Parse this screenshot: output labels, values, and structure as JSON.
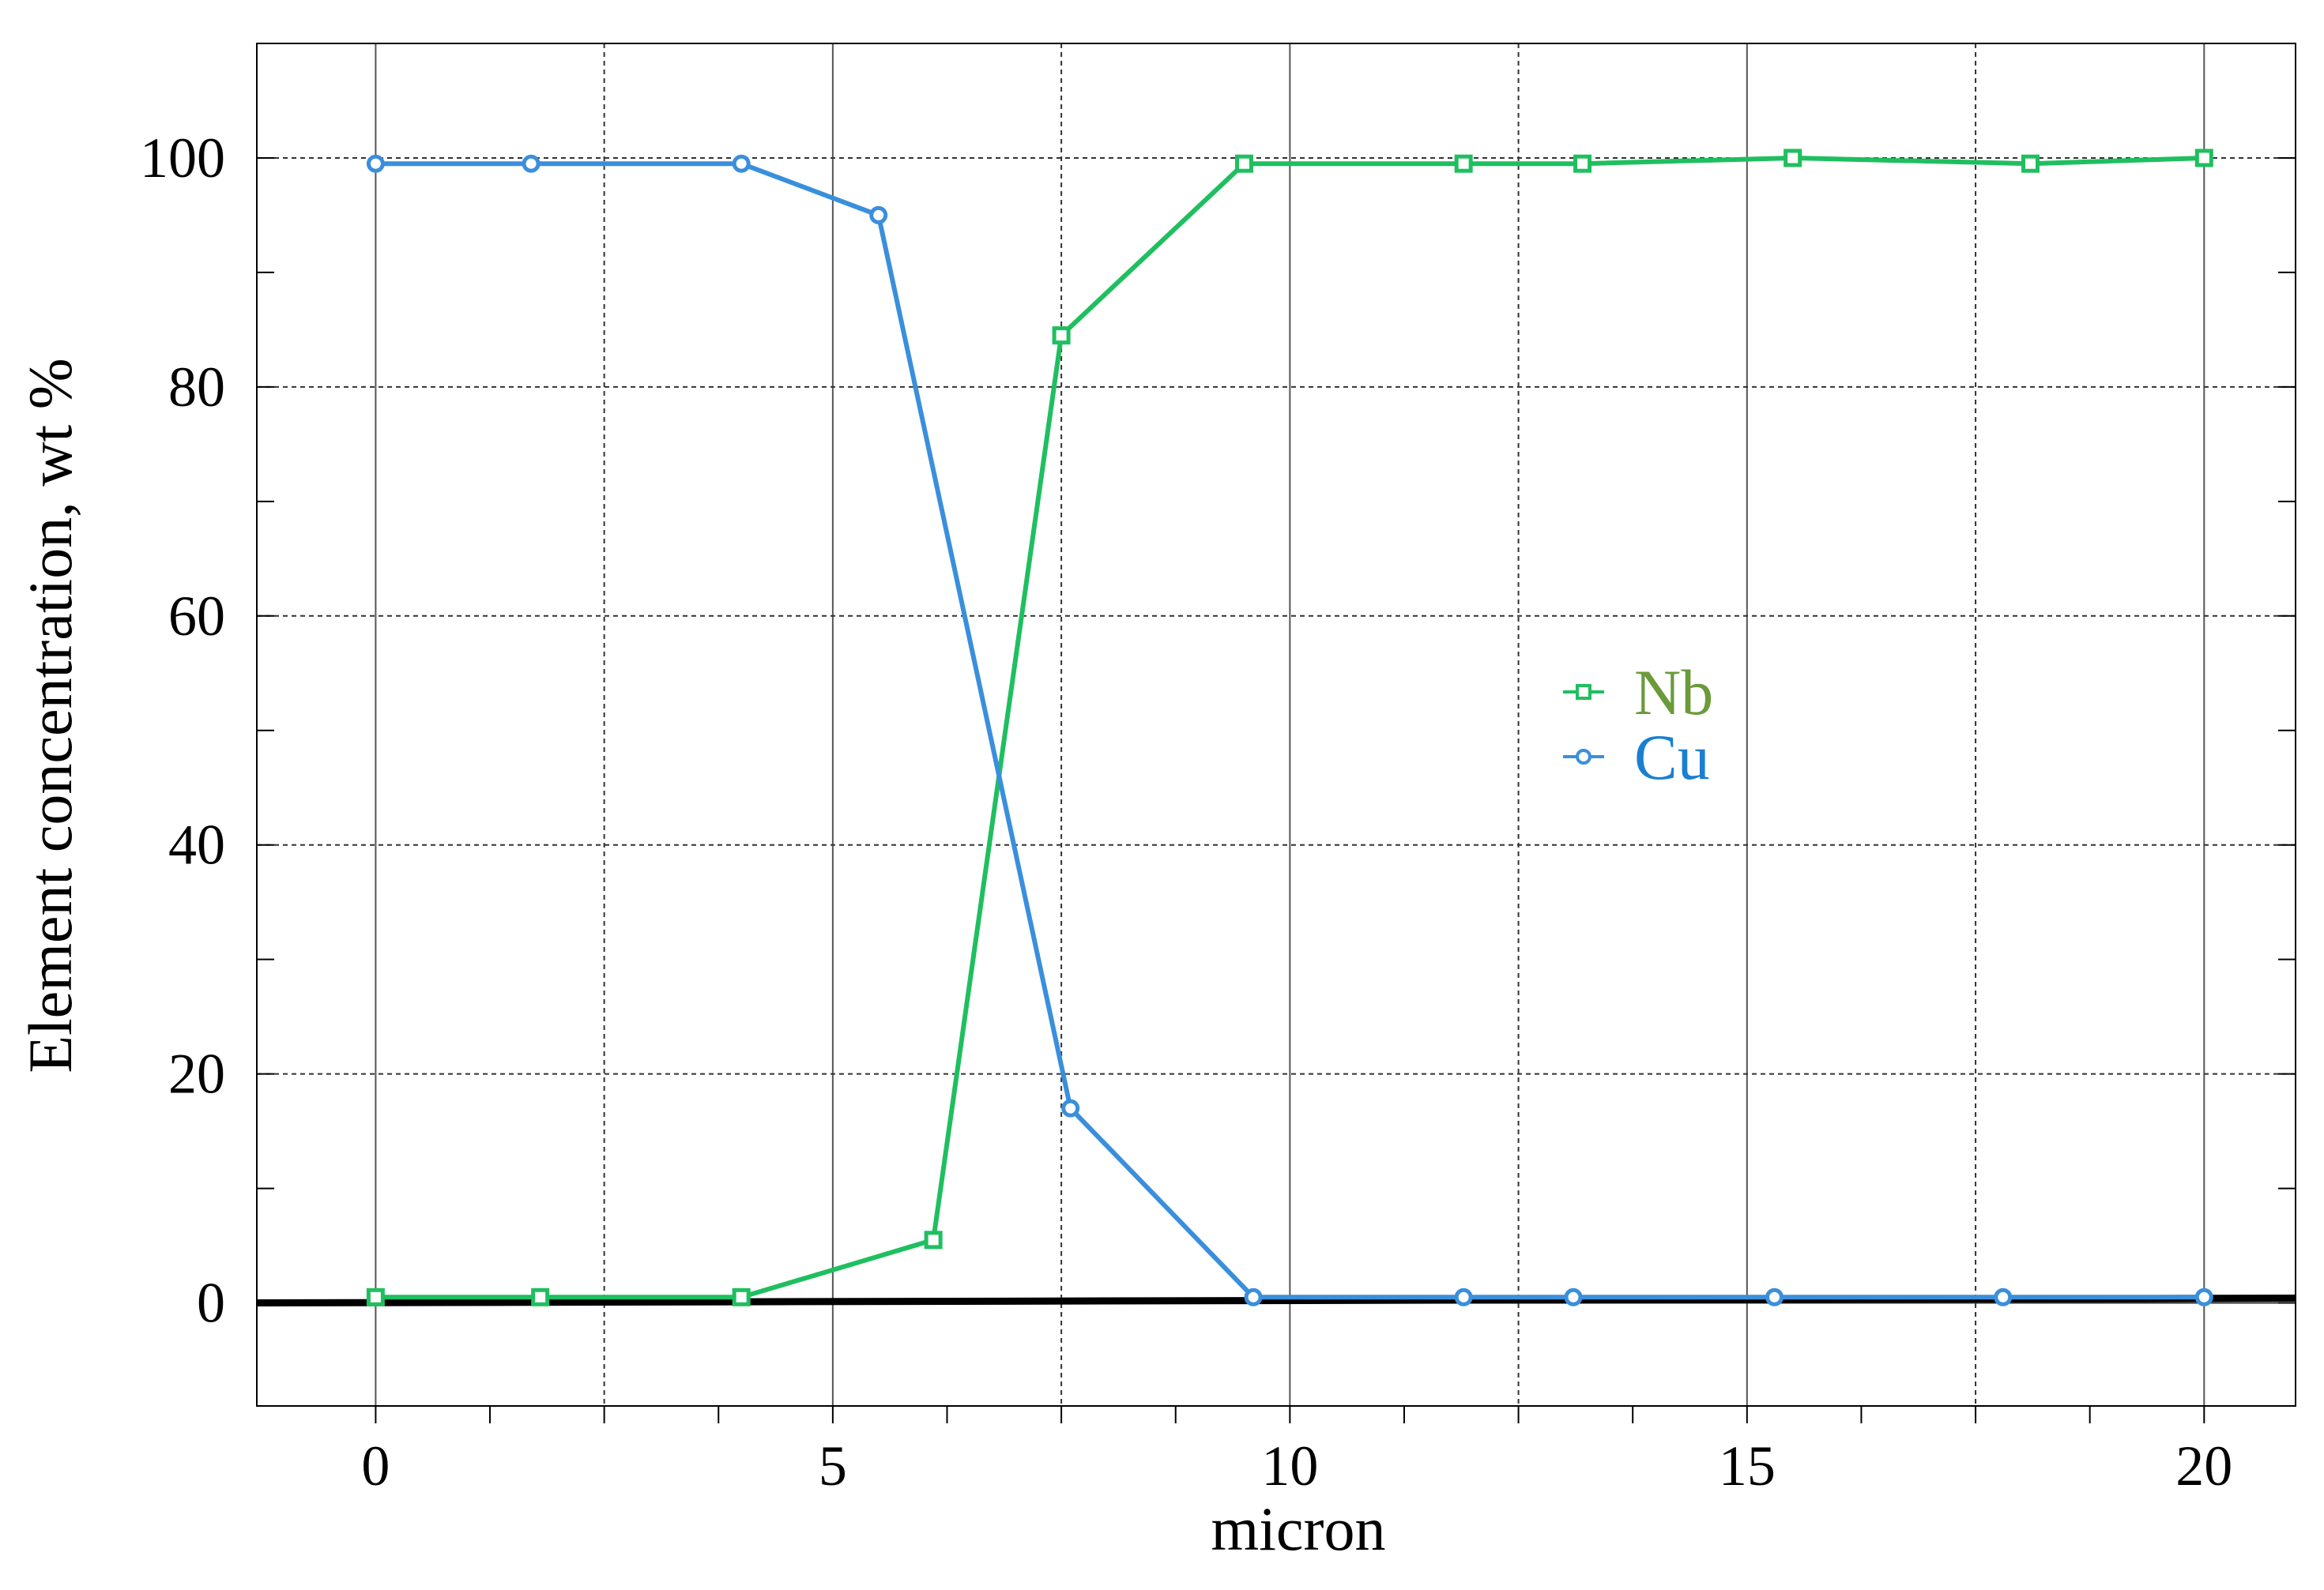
{
  "chart_data": {
    "type": "line",
    "title": "",
    "xlabel": "micron",
    "ylabel": "Element concentration, wt %",
    "xlim": [
      -1.3,
      21
    ],
    "ylim": [
      -9,
      110
    ],
    "xticks": [
      0,
      5,
      10,
      15,
      20
    ],
    "yticks": [
      0,
      20,
      40,
      60,
      80,
      100
    ],
    "xtick_labels": [
      "0",
      "5",
      "10",
      "15",
      "20"
    ],
    "ytick_labels": [
      "0",
      "20",
      "40",
      "60",
      "80",
      "100"
    ],
    "grid": true,
    "legend_position": "center-right",
    "series": [
      {
        "name": "Nb",
        "color": "#1fbf5f",
        "label_color": "#6b9a3a",
        "marker": "square",
        "x": [
          0,
          1.8,
          4.0,
          6.1,
          7.5,
          9.5,
          11.9,
          13.2,
          15.5,
          18.1,
          20
        ],
        "y": [
          0.5,
          0.5,
          0.5,
          5.5,
          84.5,
          99.5,
          99.5,
          99.5,
          100,
          99.5,
          100
        ]
      },
      {
        "name": "Cu",
        "color": "#3a8fdc",
        "label_color": "#1a7fd0",
        "marker": "circle",
        "x": [
          0,
          1.7,
          4.0,
          5.5,
          7.6,
          9.6,
          11.9,
          13.1,
          15.3,
          17.8,
          20
        ],
        "y": [
          99.5,
          99.5,
          99.5,
          95,
          17,
          0.5,
          0.5,
          0.5,
          0.5,
          0.5,
          0.5
        ]
      }
    ]
  }
}
